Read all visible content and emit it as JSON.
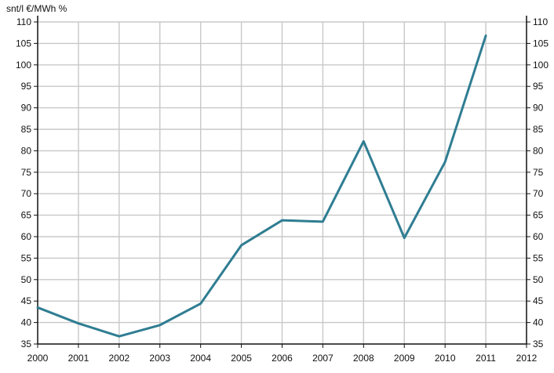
{
  "chart_data": {
    "type": "line",
    "title": "",
    "xlabel": "",
    "ylabel": "snt/l €/MWh %",
    "x": [
      2000,
      2001,
      2002,
      2003,
      2004,
      2005,
      2006,
      2007,
      2008,
      2009,
      2010,
      2011
    ],
    "series": [
      {
        "values": [
          43.5,
          39.8,
          36.8,
          39.4,
          44.4,
          58.0,
          63.8,
          63.5,
          82.2,
          59.7,
          77.4,
          106.8
        ]
      }
    ],
    "xlim": [
      2000,
      2012
    ],
    "ylim": [
      35,
      110
    ],
    "x_ticks": [
      2000,
      2001,
      2002,
      2003,
      2004,
      2005,
      2006,
      2007,
      2008,
      2009,
      2010,
      2011,
      2012
    ],
    "y_ticks": [
      35,
      40,
      45,
      50,
      55,
      60,
      65,
      70,
      75,
      80,
      85,
      90,
      95,
      100,
      105,
      110
    ],
    "y_axes": "left-and-right",
    "grid": true,
    "line_color": "#2f7d92",
    "grid_color": "#c8c8c8",
    "axis_color": "#111111"
  }
}
